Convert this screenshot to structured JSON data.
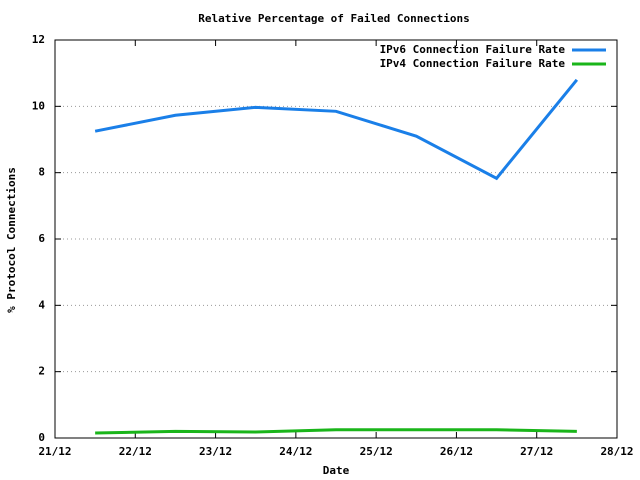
{
  "chart_data": {
    "type": "line",
    "title": "Relative Percentage of Failed Connections",
    "x_label": "Date",
    "y_label": "% Protocol Connections",
    "x": [
      21.5,
      22.5,
      23.5,
      24.5,
      25.5,
      26.5,
      27.5
    ],
    "series": [
      {
        "name": "IPv6 Connection Failure Rate",
        "color": "#1a7fe8",
        "values": [
          9.25,
          9.73,
          9.97,
          9.85,
          9.1,
          7.83,
          10.8
        ]
      },
      {
        "name": "IPv4 Connection Failure Rate",
        "color": "#1ab51a",
        "values": [
          0.15,
          0.2,
          0.18,
          0.25,
          0.25,
          0.25,
          0.2
        ]
      }
    ],
    "xlim": [
      21,
      28
    ],
    "xticks": [
      {
        "value": 21,
        "label": "21/12"
      },
      {
        "value": 22,
        "label": "22/12"
      },
      {
        "value": 23,
        "label": "23/12"
      },
      {
        "value": 24,
        "label": "24/12"
      },
      {
        "value": 25,
        "label": "25/12"
      },
      {
        "value": 26,
        "label": "26/12"
      },
      {
        "value": 27,
        "label": "27/12"
      },
      {
        "value": 28,
        "label": "28/12"
      }
    ],
    "ylim": [
      0,
      12
    ],
    "yticks": [
      0,
      2,
      4,
      6,
      8,
      10,
      12
    ],
    "grid": true,
    "legend": "top-right"
  }
}
